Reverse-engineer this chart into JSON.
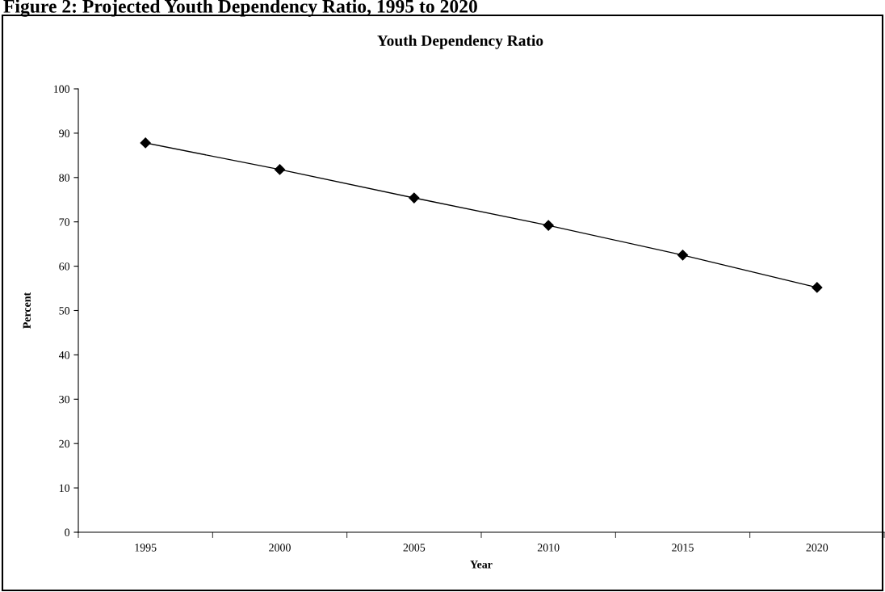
{
  "chart_data": {
    "type": "line",
    "title": "Youth Dependency Ratio",
    "annotations": [
      "Figure 2: Projected Youth Dependency Ratio, 1995 to 2020"
    ],
    "xlabel": "Year",
    "ylabel": "Percent",
    "categories": [
      "1995",
      "2000",
      "2005",
      "2010",
      "2015",
      "2020"
    ],
    "series": [
      {
        "color": "#000000",
        "values": [
          87.8,
          81.8,
          75.4,
          69.2,
          62.5,
          55.2
        ]
      }
    ],
    "ylim": [
      0,
      100
    ],
    "yticks": [
      0,
      10,
      20,
      30,
      40,
      50,
      60,
      70,
      80,
      90,
      100
    ],
    "marker": "diamond",
    "line_style": "solid",
    "grid": false,
    "legend": false
  }
}
